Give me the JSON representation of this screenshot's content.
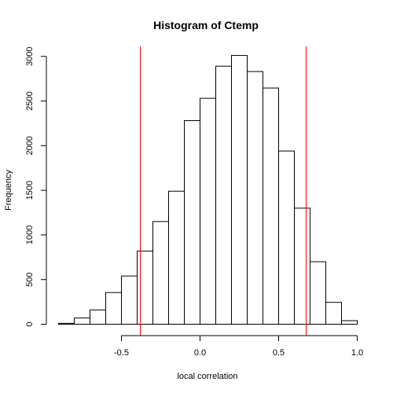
{
  "chart_data": {
    "type": "bar",
    "title": "Histogram of Ctemp",
    "xlabel": "local correlation",
    "ylabel": "Frequency",
    "xlim": [
      -0.9,
      1.0
    ],
    "ylim": [
      0,
      3000
    ],
    "x_ticks": [
      -0.5,
      0.0,
      0.5,
      1.0
    ],
    "x_tick_labels": [
      "-0.5",
      "0.0",
      "0.5",
      "1.0"
    ],
    "y_ticks": [
      0,
      500,
      1000,
      1500,
      2000,
      2500,
      3000
    ],
    "y_tick_labels": [
      "0",
      "500",
      "1000",
      "1500",
      "2000",
      "2500",
      "3000"
    ],
    "bin_edges": [
      -0.9,
      -0.8,
      -0.7,
      -0.6,
      -0.5,
      -0.4,
      -0.3,
      -0.2,
      -0.1,
      0.0,
      0.1,
      0.2,
      0.3,
      0.4,
      0.5,
      0.6,
      0.7,
      0.8,
      0.9,
      1.0
    ],
    "values": [
      10,
      70,
      160,
      355,
      540,
      820,
      1150,
      1490,
      2280,
      2530,
      2890,
      3010,
      2830,
      2645,
      1940,
      1300,
      700,
      245,
      40
    ],
    "vertical_lines": [
      {
        "x": -0.38,
        "color": "#ff0000"
      },
      {
        "x": 0.675,
        "color": "#ff0000"
      }
    ],
    "grid": false,
    "bar_fill": "#ffffff",
    "bar_stroke": "#000000"
  }
}
